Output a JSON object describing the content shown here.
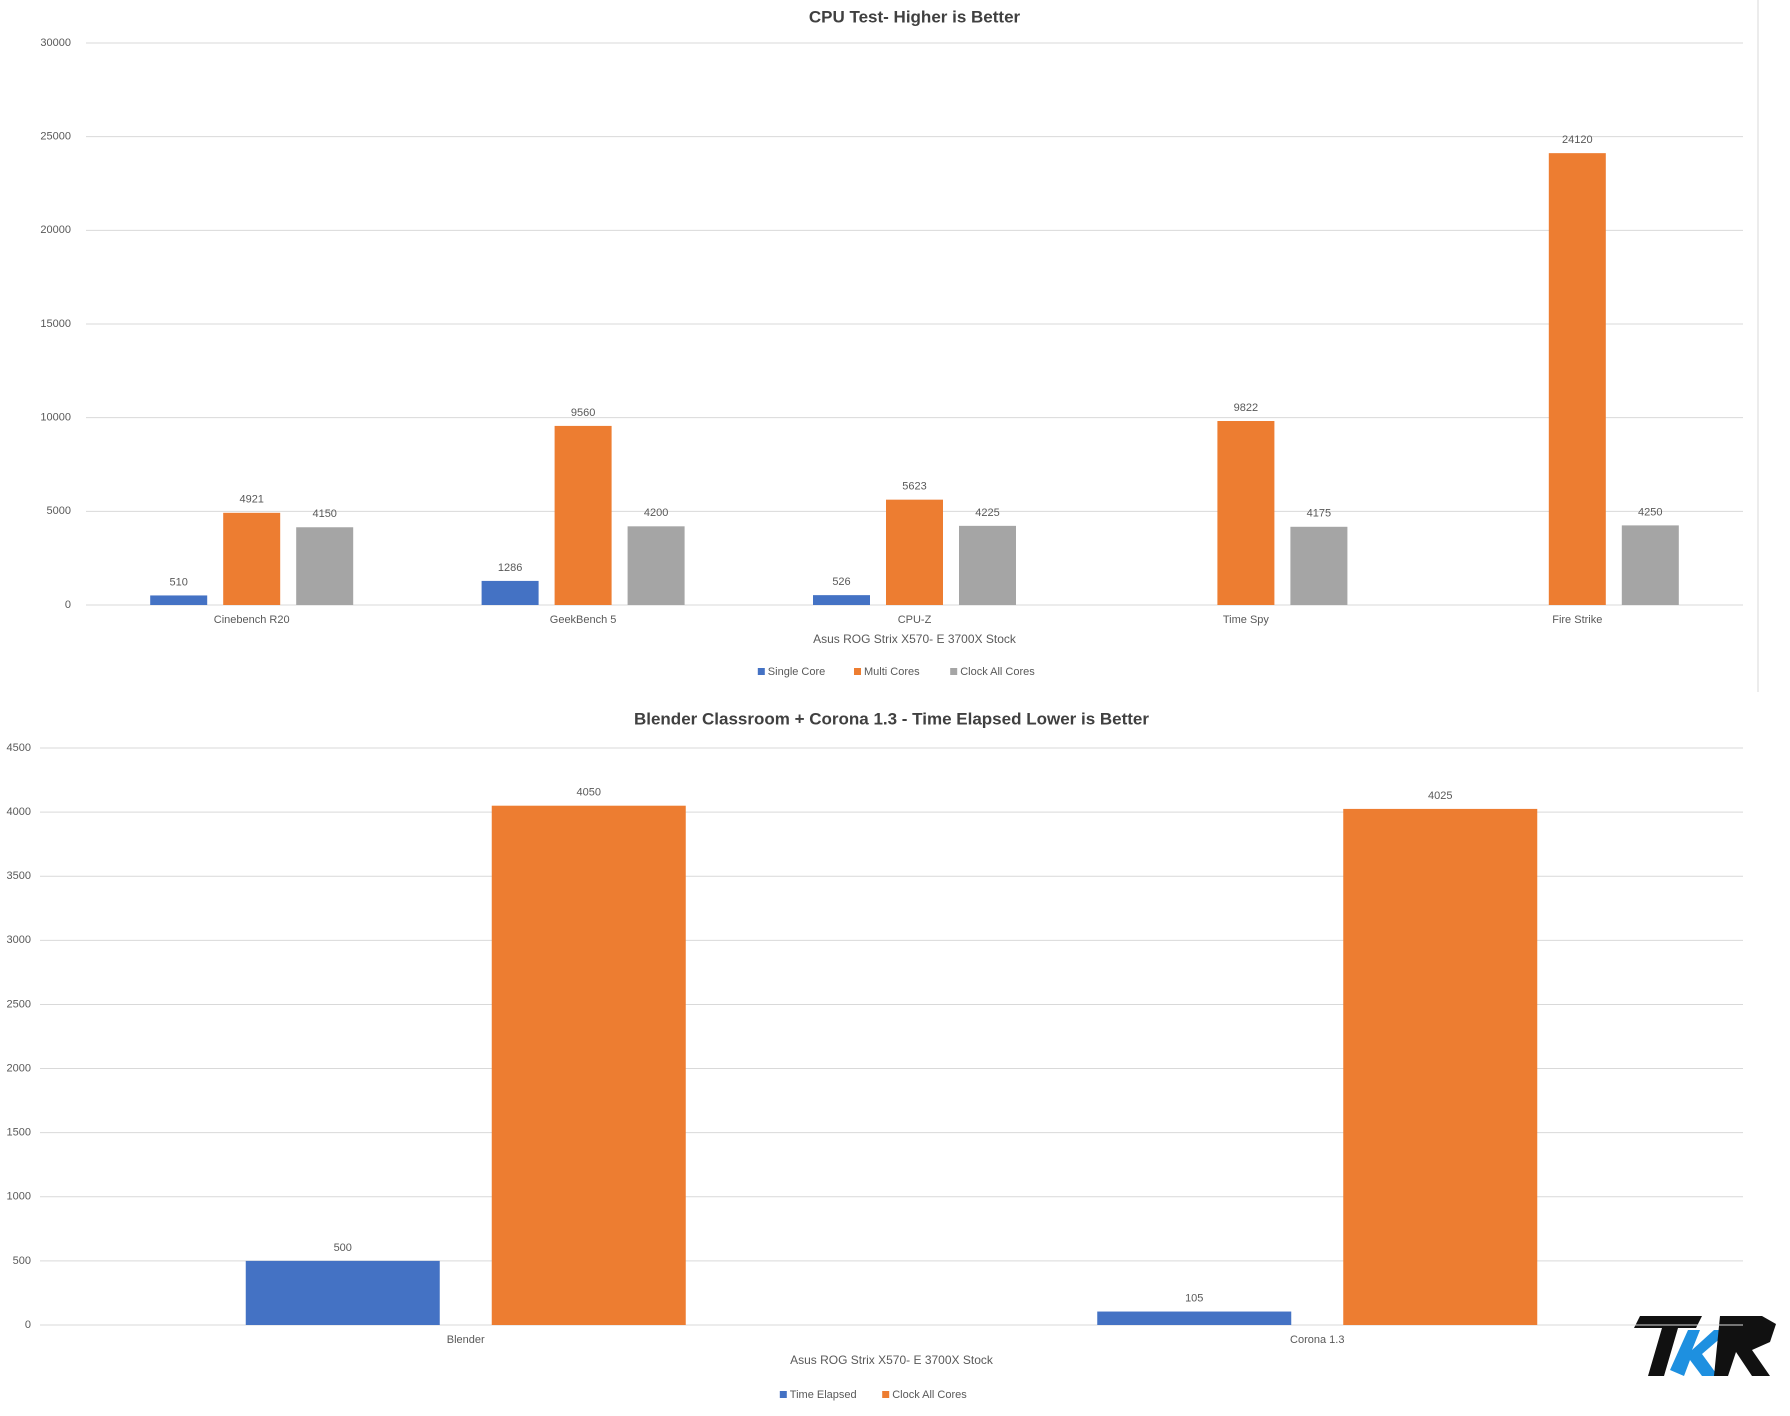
{
  "chart_data": [
    {
      "type": "bar",
      "title": "CPU Test- Higher is Better",
      "x_label": "Asus ROG Strix X570- E 3700X Stock",
      "categories": [
        "Cinebench R20",
        "GeekBench 5",
        "CPU-Z",
        "Time Spy",
        "Fire Strike"
      ],
      "series": [
        {
          "name": "Single Core",
          "color": "#4472c4",
          "values": [
            510,
            1286,
            526,
            null,
            null
          ]
        },
        {
          "name": "Multi Cores",
          "color": "#ed7d31",
          "values": [
            4921,
            9560,
            5623,
            9822,
            24120
          ]
        },
        {
          "name": "Clock All Cores",
          "color": "#a5a5a5",
          "values": [
            4150,
            4200,
            4225,
            4175,
            4250
          ]
        }
      ],
      "ylim": [
        0,
        30000
      ],
      "yticks": [
        0,
        5000,
        10000,
        15000,
        20000,
        25000,
        30000
      ],
      "grid": true,
      "legend": "bottom"
    },
    {
      "type": "bar",
      "title": "Blender Classroom + Corona 1.3 - Time Elapsed Lower is Better",
      "x_label": "Asus ROG Strix X570- E 3700X Stock",
      "categories": [
        "Blender",
        "Corona 1.3"
      ],
      "series": [
        {
          "name": "Time Elapsed",
          "color": "#4472c4",
          "values": [
            500,
            105
          ]
        },
        {
          "name": "Clock All Cores",
          "color": "#ed7d31",
          "values": [
            4050,
            4025
          ]
        }
      ],
      "ylim": [
        0,
        4500
      ],
      "yticks": [
        0,
        500,
        1000,
        1500,
        2000,
        2500,
        3000,
        3500,
        4000,
        4500
      ],
      "grid": true,
      "legend": "bottom"
    }
  ]
}
